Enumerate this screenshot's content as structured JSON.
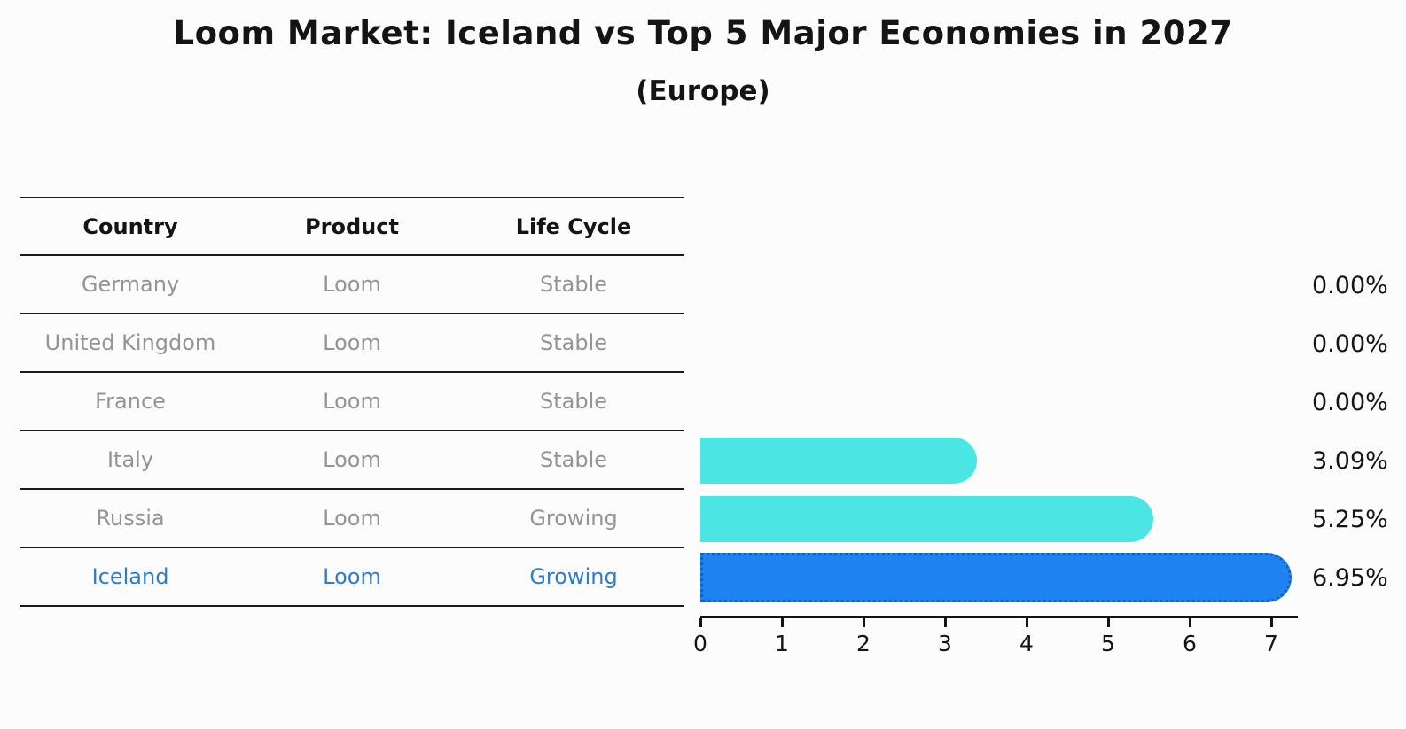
{
  "header": {
    "title": "Loom Market: Iceland vs Top 5 Major Economies in 2027",
    "subtitle": "(Europe)"
  },
  "table": {
    "headers": [
      "Country",
      "Product",
      "Life Cycle"
    ],
    "rows": [
      {
        "country": "Germany",
        "product": "Loom",
        "life_cycle": "Stable",
        "highlight": false
      },
      {
        "country": "United Kingdom",
        "product": "Loom",
        "life_cycle": "Stable",
        "highlight": false
      },
      {
        "country": "France",
        "product": "Loom",
        "life_cycle": "Stable",
        "highlight": false
      },
      {
        "country": "Italy",
        "product": "Loom",
        "life_cycle": "Stable",
        "highlight": false
      },
      {
        "country": "Russia",
        "product": "Loom",
        "life_cycle": "Growing",
        "highlight": false
      },
      {
        "country": "Iceland",
        "product": "Loom",
        "life_cycle": "Growing",
        "highlight": true
      }
    ]
  },
  "chart_data": {
    "type": "bar",
    "orientation": "horizontal",
    "title": "Loom Market: Iceland vs Top 5 Major Economies in 2027",
    "subtitle": "(Europe)",
    "categories": [
      "Germany",
      "United Kingdom",
      "France",
      "Italy",
      "Russia",
      "Iceland"
    ],
    "values": [
      0.0,
      0.0,
      0.0,
      3.09,
      5.25,
      6.95
    ],
    "value_labels": [
      "0.00%",
      "0.00%",
      "0.00%",
      "3.09%",
      "5.25%",
      "6.95%"
    ],
    "xlim": [
      0,
      7.3
    ],
    "xticks": [
      "0",
      "1",
      "2",
      "3",
      "4",
      "5",
      "6",
      "7"
    ],
    "grid": false,
    "legend": "none",
    "highlight_index": 5,
    "bar_color": "#4BE6E3",
    "highlight_color": "#1E82F0",
    "highlight_border_color": "#155EC4",
    "highlight_text_color": "#2E7CCF",
    "table_text_color": "#949494"
  }
}
